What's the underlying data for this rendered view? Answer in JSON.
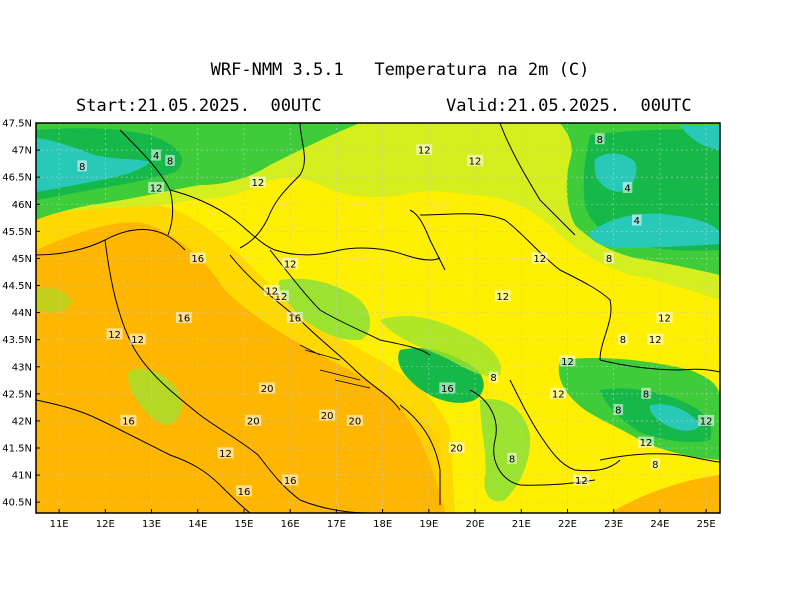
{
  "header": {
    "title": "WRF-NMM 3.5.1   Temperatura na 2m (C)",
    "start": "Start:21.05.2025.  00UTC",
    "valid": "Valid:21.05.2025.  00UTC"
  },
  "axes": {
    "lat_labels": [
      "47.5N",
      "47N",
      "46.5N",
      "46N",
      "45.5N",
      "45N",
      "44.5N",
      "44N",
      "43.5N",
      "43N",
      "42.5N",
      "42N",
      "41.5N",
      "41N",
      "40.5N"
    ],
    "lon_labels": [
      "11E",
      "12E",
      "13E",
      "14E",
      "15E",
      "16E",
      "17E",
      "18E",
      "19E",
      "20E",
      "21E",
      "22E",
      "23E",
      "24E",
      "25E"
    ]
  },
  "colors": {
    "cold_teal": "#29c9b8",
    "green_dark": "#16b84a",
    "green": "#3ecc3a",
    "green_light": "#9be330",
    "yellow_green": "#d5ee1e",
    "yellow": "#ffef00",
    "yellow_orange": "#ffd300",
    "orange": "#ffb600",
    "border": "#000000",
    "grid": "#c8c8c8"
  },
  "contour_labels": [
    {
      "text": "12",
      "lon": 15.8,
      "lat": 44.3
    },
    {
      "text": "4",
      "lon": 13.1,
      "lat": 46.9
    },
    {
      "text": "8",
      "lon": 13.4,
      "lat": 46.8
    },
    {
      "text": "8",
      "lon": 11.5,
      "lat": 46.7
    },
    {
      "text": "12",
      "lon": 13.1,
      "lat": 46.3
    },
    {
      "text": "12",
      "lon": 15.3,
      "lat": 46.4
    },
    {
      "text": "12",
      "lon": 18.9,
      "lat": 47.0
    },
    {
      "text": "12",
      "lon": 20.0,
      "lat": 46.8
    },
    {
      "text": "8",
      "lon": 22.7,
      "lat": 47.2
    },
    {
      "text": "4",
      "lon": 23.3,
      "lat": 46.3
    },
    {
      "text": "4",
      "lon": 23.5,
      "lat": 45.7
    },
    {
      "text": "16",
      "lon": 14.0,
      "lat": 45.0
    },
    {
      "text": "12",
      "lon": 16.0,
      "lat": 44.9
    },
    {
      "text": "12",
      "lon": 15.6,
      "lat": 44.4
    },
    {
      "text": "12",
      "lon": 20.6,
      "lat": 44.3
    },
    {
      "text": "12",
      "lon": 21.4,
      "lat": 45.0
    },
    {
      "text": "8",
      "lon": 22.9,
      "lat": 45.0
    },
    {
      "text": "16",
      "lon": 13.7,
      "lat": 43.9
    },
    {
      "text": "12",
      "lon": 12.2,
      "lat": 43.6
    },
    {
      "text": "12",
      "lon": 12.7,
      "lat": 43.5
    },
    {
      "text": "16",
      "lon": 16.1,
      "lat": 43.9
    },
    {
      "text": "12",
      "lon": 24.1,
      "lat": 43.9
    },
    {
      "text": "8",
      "lon": 23.2,
      "lat": 43.5
    },
    {
      "text": "12",
      "lon": 23.9,
      "lat": 43.5
    },
    {
      "text": "12",
      "lon": 22.0,
      "lat": 43.1
    },
    {
      "text": "8",
      "lon": 20.4,
      "lat": 42.8
    },
    {
      "text": "16",
      "lon": 19.4,
      "lat": 42.6
    },
    {
      "text": "20",
      "lon": 15.5,
      "lat": 42.6
    },
    {
      "text": "12",
      "lon": 21.8,
      "lat": 42.5
    },
    {
      "text": "8",
      "lon": 23.7,
      "lat": 42.5
    },
    {
      "text": "8",
      "lon": 23.1,
      "lat": 42.2
    },
    {
      "text": "20",
      "lon": 15.2,
      "lat": 42.0
    },
    {
      "text": "20",
      "lon": 16.8,
      "lat": 42.1
    },
    {
      "text": "20",
      "lon": 17.4,
      "lat": 42.0
    },
    {
      "text": "16",
      "lon": 12.5,
      "lat": 42.0
    },
    {
      "text": "12",
      "lon": 23.7,
      "lat": 41.6
    },
    {
      "text": "12",
      "lon": 25.0,
      "lat": 42.0
    },
    {
      "text": "20",
      "lon": 19.6,
      "lat": 41.5
    },
    {
      "text": "8",
      "lon": 20.8,
      "lat": 41.3
    },
    {
      "text": "8",
      "lon": 23.9,
      "lat": 41.2
    },
    {
      "text": "12",
      "lon": 14.6,
      "lat": 41.4
    },
    {
      "text": "16",
      "lon": 16.0,
      "lat": 40.9
    },
    {
      "text": "12",
      "lon": 22.3,
      "lat": 40.9
    },
    {
      "text": "16",
      "lon": 15.0,
      "lat": 40.7
    }
  ]
}
